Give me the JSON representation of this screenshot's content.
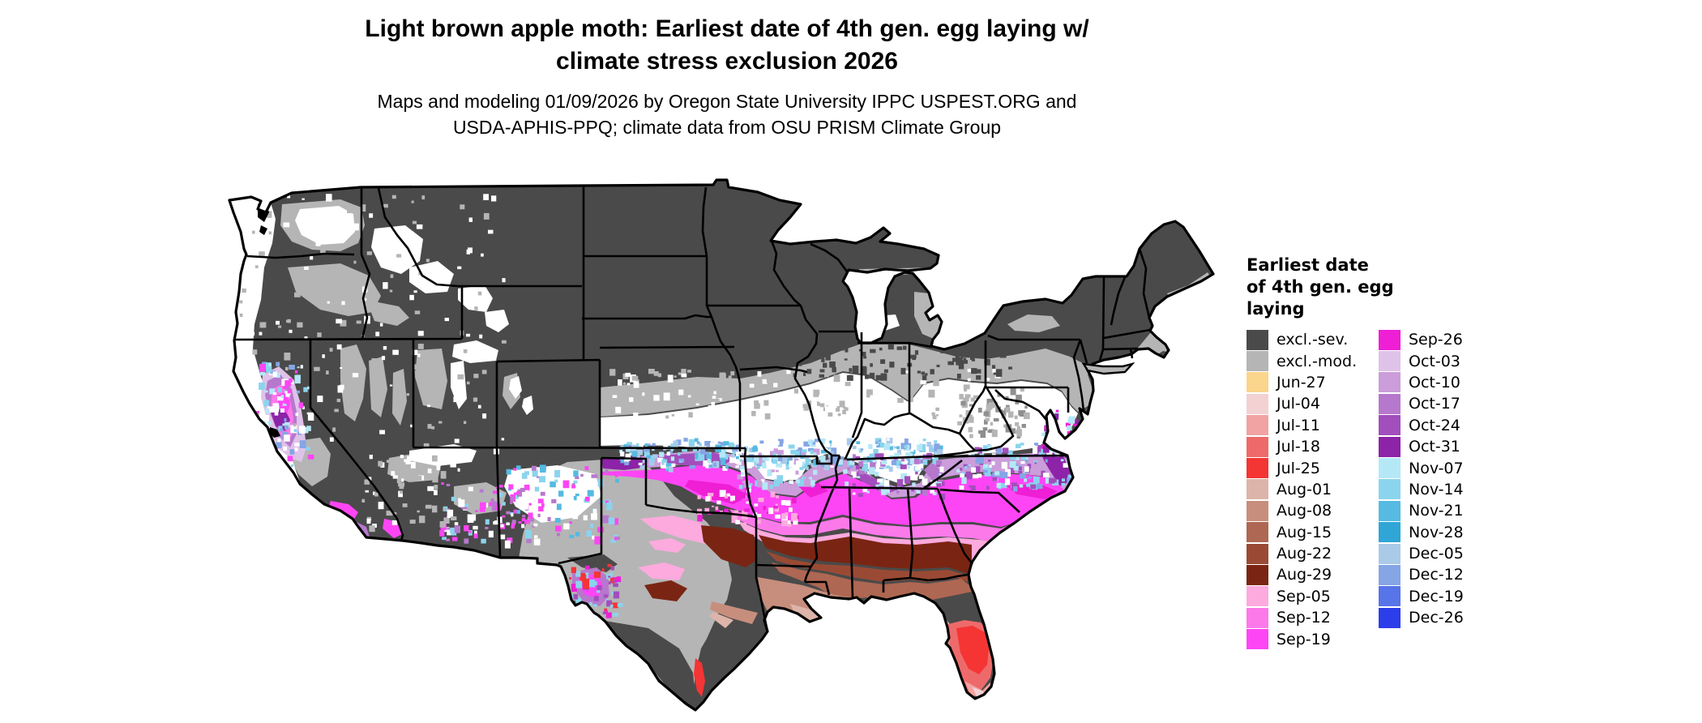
{
  "header": {
    "title_line1": "Light brown apple moth: Earliest date of 4th gen. egg laying w/",
    "title_line2": "climate stress exclusion 2026",
    "subtitle_line1": "Maps and modeling 01/09/2026 by Oregon State University IPPC USPEST.ORG and",
    "subtitle_line2": "USDA-APHIS-PPQ; climate data from OSU PRISM Climate Group"
  },
  "legend": {
    "title_lines": [
      "Earliest date",
      "of 4th gen. egg",
      "laying"
    ],
    "columns": [
      {
        "entries": [
          {
            "label": "excl.-sev.",
            "key": "exclSev"
          },
          {
            "label": "excl.-mod.",
            "key": "exclMod"
          },
          {
            "label": "Jun-27",
            "key": "jun27"
          },
          {
            "label": "Jul-04",
            "key": "jul04"
          },
          {
            "label": "Jul-11",
            "key": "jul11"
          },
          {
            "label": "Jul-18",
            "key": "jul18"
          },
          {
            "label": "Jul-25",
            "key": "jul25"
          },
          {
            "label": "Aug-01",
            "key": "aug01"
          },
          {
            "label": "Aug-08",
            "key": "aug08"
          },
          {
            "label": "Aug-15",
            "key": "aug15"
          },
          {
            "label": "Aug-22",
            "key": "aug22"
          },
          {
            "label": "Aug-29",
            "key": "aug29"
          },
          {
            "label": "Sep-05",
            "key": "sep05"
          },
          {
            "label": "Sep-12",
            "key": "sep12"
          },
          {
            "label": "Sep-19",
            "key": "sep19"
          }
        ]
      },
      {
        "entries": [
          {
            "label": "Sep-26",
            "key": "sep26"
          },
          {
            "label": "Oct-03",
            "key": "oct03"
          },
          {
            "label": "Oct-10",
            "key": "oct10"
          },
          {
            "label": "Oct-17",
            "key": "oct17"
          },
          {
            "label": "Oct-24",
            "key": "oct24"
          },
          {
            "label": "Oct-31",
            "key": "oct31"
          },
          {
            "label": "Nov-07",
            "key": "nov07"
          },
          {
            "label": "Nov-14",
            "key": "nov14"
          },
          {
            "label": "Nov-21",
            "key": "nov21"
          },
          {
            "label": "Nov-28",
            "key": "nov28"
          },
          {
            "label": "Dec-05",
            "key": "dec05"
          },
          {
            "label": "Dec-12",
            "key": "dec12"
          },
          {
            "label": "Dec-19",
            "key": "dec19"
          },
          {
            "label": "Dec-26",
            "key": "dec26"
          }
        ]
      }
    ]
  },
  "palette": {
    "exclSev": "#4a4a4a",
    "exclMod": "#b5b5b5",
    "jun27": "#fad58c",
    "jul04": "#f3d1d3",
    "jul11": "#f1a2a2",
    "jul18": "#ee6a6a",
    "jul25": "#f53434",
    "aug01": "#ddb4a9",
    "aug08": "#c78e7d",
    "aug15": "#ae6752",
    "aug22": "#9a4a34",
    "aug29": "#7a2513",
    "sep05": "#fdaade",
    "sep12": "#fc79ea",
    "sep19": "#fe45f5",
    "sep26": "#ee1fd4",
    "oct03": "#dfc2e8",
    "oct10": "#cb9dda",
    "oct17": "#b678cd",
    "oct24": "#a24ebc",
    "oct31": "#8d23a8",
    "nov07": "#b5e8f6",
    "nov14": "#8bd4ed",
    "nov21": "#56bae1",
    "nov28": "#30a6d7",
    "dec05": "#aacae8",
    "dec12": "#85a5e5",
    "dec19": "#5874e9",
    "dec26": "#2c3eea",
    "water": "#000000",
    "background": "#ffffff"
  }
}
